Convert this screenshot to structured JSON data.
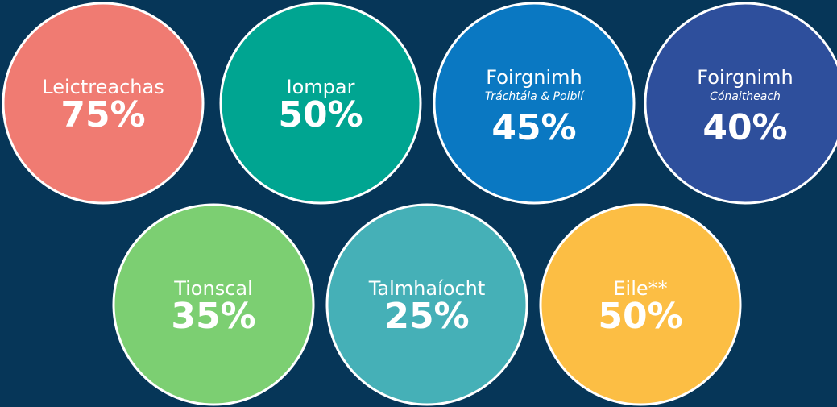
{
  "items": [
    {
      "label": "Leictreachas",
      "value": "75%",
      "color": "#f07b72"
    },
    {
      "label": "Iompar",
      "value": "50%",
      "color": "#00a591"
    },
    {
      "label": "Foirgnimh",
      "sublabel": "Tráchtála & Poiblí",
      "value": "45%",
      "color": "#0a78c2"
    },
    {
      "label": "Foirgnimh",
      "sublabel": "Cónaitheach",
      "value": "40%",
      "color": "#2e4f9c"
    },
    {
      "label": "Tionscal",
      "value": "35%",
      "color": "#7ccf72"
    },
    {
      "label": "Talmhaíocht",
      "value": "25%",
      "color": "#45b0b7"
    },
    {
      "label": "Eile**",
      "value": "50%",
      "color": "#fcbe44"
    }
  ]
}
